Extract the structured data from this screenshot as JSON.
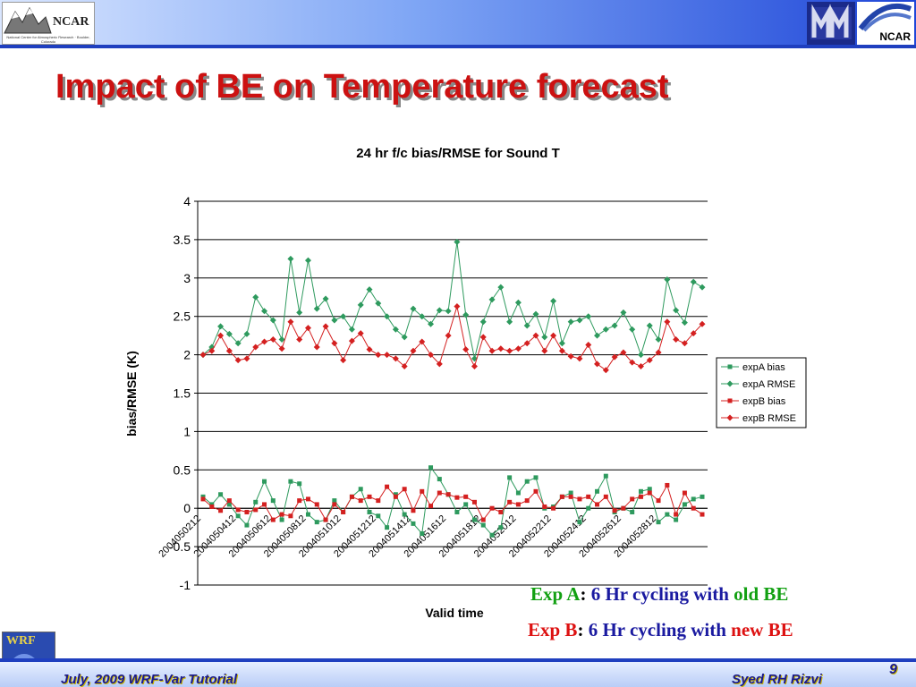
{
  "header": {
    "left_logo_text": "NCAR",
    "left_logo_subtext": "National Center for Atmospheric Research · Boulder, Colorado",
    "right_logo_text": "NCAR"
  },
  "slide": {
    "title": "Impact of BE on Temperature forecast"
  },
  "notes": {
    "exp_a": {
      "name": "Exp A",
      "sep": ": ",
      "text": "6 Hr cycling with ",
      "emph": "old BE"
    },
    "exp_b": {
      "name": "Exp B",
      "sep": ": ",
      "text": "6 Hr cycling with ",
      "emph": "new BE"
    }
  },
  "footer": {
    "left": "July, 2009 WRF-Var Tutorial",
    "right": "Syed RH Rizvi",
    "page": "9",
    "wrf_logo_text": "WRF"
  },
  "colors": {
    "title": "#cc1111",
    "expA": "#2e9a5e",
    "expB": "#d42020",
    "note_green": "#12a012",
    "note_red": "#dd1111",
    "note_blue": "#1a1aa0"
  },
  "chart_data": {
    "type": "line",
    "title": "24 hr f/c bias/RMSE for Sound   T",
    "xlabel": "Valid time",
    "ylabel": "bias/RMSE (K)",
    "ylim": [
      -1,
      4
    ],
    "yticks": [
      "4",
      "3.5",
      "3",
      "2.5",
      "2",
      "1.5",
      "1",
      "0.5",
      "0",
      "-0.5",
      "-1"
    ],
    "xtick_labels": [
      "2004050212",
      "2004050412",
      "2004050612",
      "2004050812",
      "2004051012",
      "2004051212",
      "2004051412",
      "2004051612",
      "2004051812",
      "2004052012",
      "2004052212",
      "2004052412",
      "2004052612",
      "2004052812"
    ],
    "grid": "horizontal",
    "legend_position": "right",
    "n_points": 58,
    "series": [
      {
        "name": "expA bias",
        "marker": "square",
        "color": "#2e9a5e",
        "values": [
          0.15,
          0.05,
          0.18,
          0.05,
          -0.1,
          -0.22,
          0.08,
          0.35,
          0.1,
          -0.15,
          0.35,
          0.32,
          -0.08,
          -0.18,
          -0.15,
          0.1,
          -0.05,
          0.15,
          0.25,
          -0.05,
          -0.1,
          -0.25,
          0.18,
          -0.08,
          -0.2,
          -0.33,
          0.53,
          0.38,
          0.18,
          -0.05,
          0.05,
          -0.15,
          -0.22,
          -0.35,
          -0.25,
          0.4,
          0.2,
          0.35,
          0.4,
          0.0,
          0.02,
          0.15,
          0.2,
          -0.18,
          0.0,
          0.22,
          0.42,
          -0.05,
          0.0,
          -0.05,
          0.22,
          0.25,
          -0.18,
          -0.08,
          -0.15,
          0.05,
          0.12,
          0.15
        ]
      },
      {
        "name": "expA RMSE",
        "marker": "diamond",
        "color": "#2e9a5e",
        "values": [
          2.0,
          2.1,
          2.37,
          2.27,
          2.15,
          2.27,
          2.75,
          2.57,
          2.45,
          2.2,
          3.25,
          2.55,
          3.23,
          2.6,
          2.73,
          2.45,
          2.5,
          2.33,
          2.65,
          2.85,
          2.67,
          2.5,
          2.33,
          2.23,
          2.6,
          2.5,
          2.4,
          2.58,
          2.57,
          3.47,
          2.52,
          1.95,
          2.43,
          2.72,
          2.88,
          2.43,
          2.68,
          2.38,
          2.53,
          2.23,
          2.7,
          2.15,
          2.43,
          2.45,
          2.5,
          2.25,
          2.33,
          2.38,
          2.55,
          2.33,
          2.0,
          2.38,
          2.2,
          2.98,
          2.58,
          2.42,
          2.95,
          2.88
        ]
      },
      {
        "name": "expB bias",
        "marker": "square",
        "color": "#d42020",
        "values": [
          0.12,
          0.02,
          -0.03,
          0.1,
          -0.02,
          -0.05,
          -0.02,
          0.05,
          -0.15,
          -0.08,
          -0.1,
          0.1,
          0.12,
          0.05,
          -0.15,
          0.05,
          -0.05,
          0.15,
          0.1,
          0.15,
          0.1,
          0.28,
          0.15,
          0.25,
          -0.03,
          0.22,
          0.03,
          0.2,
          0.18,
          0.14,
          0.15,
          0.08,
          -0.15,
          0.0,
          -0.05,
          0.08,
          0.05,
          0.1,
          0.22,
          0.02,
          0.0,
          0.15,
          0.15,
          0.12,
          0.15,
          0.05,
          0.15,
          -0.03,
          0.0,
          0.12,
          0.15,
          0.2,
          0.1,
          0.3,
          -0.08,
          0.2,
          0.0,
          -0.08
        ]
      },
      {
        "name": "expB RMSE",
        "marker": "diamond",
        "color": "#d42020",
        "values": [
          2.0,
          2.05,
          2.25,
          2.05,
          1.93,
          1.95,
          2.1,
          2.17,
          2.2,
          2.08,
          2.43,
          2.2,
          2.35,
          2.1,
          2.37,
          2.15,
          1.93,
          2.18,
          2.28,
          2.07,
          2.0,
          2.0,
          1.95,
          1.85,
          2.05,
          2.17,
          2.0,
          1.88,
          2.25,
          2.63,
          2.07,
          1.85,
          2.23,
          2.05,
          2.08,
          2.05,
          2.08,
          2.15,
          2.25,
          2.05,
          2.25,
          2.05,
          1.98,
          1.95,
          2.13,
          1.88,
          1.8,
          1.97,
          2.03,
          1.9,
          1.85,
          1.93,
          2.03,
          2.43,
          2.2,
          2.15,
          2.28,
          2.4
        ]
      }
    ]
  }
}
